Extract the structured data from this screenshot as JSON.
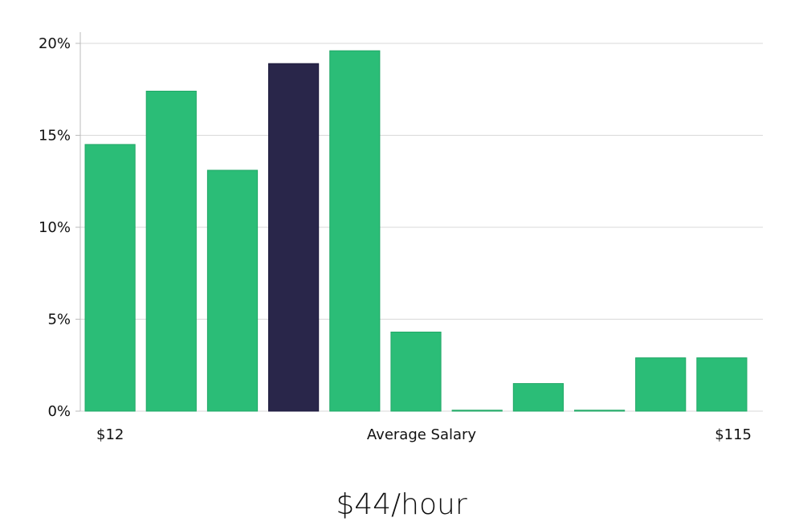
{
  "headline": "$44/hour",
  "colors": {
    "bar": "#2bbd77",
    "highlight": "#29264a",
    "grid": "#d9d9d9",
    "axis": "#bbbbbb"
  },
  "chart_data": {
    "type": "bar",
    "title": "",
    "xlabel": "Average Salary",
    "ylabel": "",
    "x_min_label": "$12",
    "x_max_label": "$115",
    "values": [
      14.5,
      17.4,
      13.1,
      18.9,
      19.6,
      4.3,
      0.05,
      1.5,
      0.05,
      2.9,
      2.9
    ],
    "highlight_index": 3,
    "ylim": [
      0,
      20
    ],
    "yticks": [
      {
        "value": 0,
        "label": "0%"
      },
      {
        "value": 5,
        "label": "5%"
      },
      {
        "value": 10,
        "label": "10%"
      },
      {
        "value": 15,
        "label": "15%"
      },
      {
        "value": 20,
        "label": "20%"
      }
    ],
    "grid": true,
    "legend": "none"
  }
}
